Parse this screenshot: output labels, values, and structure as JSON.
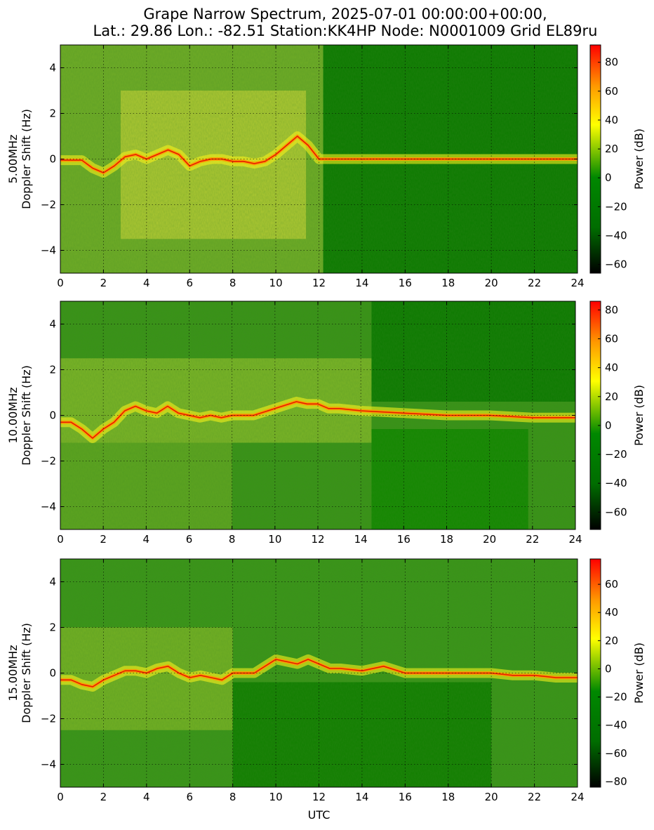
{
  "title_line1": "Grape Narrow Spectrum, 2025-07-01 00:00:00+00:00,",
  "title_line2": "Lat.: 29.86 Lon.: -82.51 Station:KK4HP Node: N0001009 Grid EL89ru",
  "colorscale": [
    "#000000",
    "#006d00",
    "#008800",
    "#ffff00",
    "#ff9900",
    "#ff0000"
  ],
  "chart_data": [
    {
      "type": "heatmap",
      "panel_label": "5.00MHz",
      "ylabel": "Doppler Shift (Hz)",
      "xlabel": "",
      "xlim": [
        0,
        24
      ],
      "ylim": [
        -5,
        5
      ],
      "xticks": [
        0,
        2,
        4,
        6,
        8,
        10,
        12,
        14,
        16,
        18,
        20,
        22,
        24
      ],
      "yticks": [
        -4,
        -2,
        0,
        2,
        4
      ],
      "grid": true,
      "colorbar": {
        "label": "Power (dB)",
        "range": [
          -66,
          92
        ],
        "ticks": [
          -60,
          -40,
          -20,
          0,
          20,
          40,
          60,
          80
        ]
      },
      "doppler_trace": [
        {
          "utc": 0,
          "hz": -0.05
        },
        {
          "utc": 1,
          "hz": -0.05
        },
        {
          "utc": 1.5,
          "hz": -0.4
        },
        {
          "utc": 2,
          "hz": -0.6
        },
        {
          "utc": 2.5,
          "hz": -0.3
        },
        {
          "utc": 3,
          "hz": 0.1
        },
        {
          "utc": 3.5,
          "hz": 0.2
        },
        {
          "utc": 4,
          "hz": 0.0
        },
        {
          "utc": 4.5,
          "hz": 0.2
        },
        {
          "utc": 5,
          "hz": 0.4
        },
        {
          "utc": 5.5,
          "hz": 0.2
        },
        {
          "utc": 6,
          "hz": -0.3
        },
        {
          "utc": 6.5,
          "hz": -0.1
        },
        {
          "utc": 7,
          "hz": 0.0
        },
        {
          "utc": 7.5,
          "hz": 0.0
        },
        {
          "utc": 8,
          "hz": -0.1
        },
        {
          "utc": 8.5,
          "hz": -0.1
        },
        {
          "utc": 9,
          "hz": -0.2
        },
        {
          "utc": 9.5,
          "hz": -0.1
        },
        {
          "utc": 10,
          "hz": 0.2
        },
        {
          "utc": 10.5,
          "hz": 0.6
        },
        {
          "utc": 11,
          "hz": 1.0
        },
        {
          "utc": 11.5,
          "hz": 0.6
        },
        {
          "utc": 12,
          "hz": 0.0
        },
        {
          "utc": 24,
          "hz": 0.0
        }
      ],
      "broad_signal_end_utc": 12.2
    },
    {
      "type": "heatmap",
      "panel_label": "10.00MHz",
      "ylabel": "Doppler Shift (Hz)",
      "xlabel": "",
      "xlim": [
        0,
        24
      ],
      "ylim": [
        -5,
        5
      ],
      "xticks": [
        0,
        2,
        4,
        6,
        8,
        10,
        12,
        14,
        16,
        18,
        20,
        22,
        24
      ],
      "yticks": [
        -4,
        -2,
        0,
        2,
        4
      ],
      "grid": true,
      "colorbar": {
        "label": "Power (dB)",
        "range": [
          -72,
          86
        ],
        "ticks": [
          -60,
          -40,
          -20,
          0,
          20,
          40,
          60,
          80
        ]
      },
      "doppler_trace": [
        {
          "utc": 0,
          "hz": -0.3
        },
        {
          "utc": 0.5,
          "hz": -0.3
        },
        {
          "utc": 1,
          "hz": -0.6
        },
        {
          "utc": 1.5,
          "hz": -1.0
        },
        {
          "utc": 2,
          "hz": -0.6
        },
        {
          "utc": 2.5,
          "hz": -0.3
        },
        {
          "utc": 3,
          "hz": 0.2
        },
        {
          "utc": 3.5,
          "hz": 0.4
        },
        {
          "utc": 4,
          "hz": 0.2
        },
        {
          "utc": 4.5,
          "hz": 0.1
        },
        {
          "utc": 5,
          "hz": 0.4
        },
        {
          "utc": 5.5,
          "hz": 0.1
        },
        {
          "utc": 6,
          "hz": 0.0
        },
        {
          "utc": 6.5,
          "hz": -0.1
        },
        {
          "utc": 7,
          "hz": 0.0
        },
        {
          "utc": 7.5,
          "hz": -0.1
        },
        {
          "utc": 8,
          "hz": 0.0
        },
        {
          "utc": 9,
          "hz": 0.0
        },
        {
          "utc": 10,
          "hz": 0.3
        },
        {
          "utc": 11,
          "hz": 0.6
        },
        {
          "utc": 11.5,
          "hz": 0.5
        },
        {
          "utc": 12,
          "hz": 0.5
        },
        {
          "utc": 12.5,
          "hz": 0.3
        },
        {
          "utc": 13,
          "hz": 0.3
        },
        {
          "utc": 14,
          "hz": 0.2
        },
        {
          "utc": 16,
          "hz": 0.1
        },
        {
          "utc": 18,
          "hz": 0.0
        },
        {
          "utc": 20,
          "hz": 0.0
        },
        {
          "utc": 22,
          "hz": -0.1
        },
        {
          "utc": 24,
          "hz": -0.1
        }
      ],
      "broad_signal_end_utc": 24
    },
    {
      "type": "heatmap",
      "panel_label": "15.00MHz",
      "ylabel": "Doppler Shift (Hz)",
      "xlabel": "UTC",
      "xlim": [
        0,
        24
      ],
      "ylim": [
        -5,
        5
      ],
      "xticks": [
        0,
        2,
        4,
        6,
        8,
        10,
        12,
        14,
        16,
        18,
        20,
        22,
        24
      ],
      "yticks": [
        -4,
        -2,
        0,
        2,
        4
      ],
      "grid": true,
      "colorbar": {
        "label": "Power (dB)",
        "range": [
          -84,
          78
        ],
        "ticks": [
          -80,
          -60,
          -40,
          -20,
          0,
          20,
          40,
          60
        ]
      },
      "doppler_trace": [
        {
          "utc": 0,
          "hz": -0.3
        },
        {
          "utc": 0.5,
          "hz": -0.3
        },
        {
          "utc": 1,
          "hz": -0.5
        },
        {
          "utc": 1.5,
          "hz": -0.6
        },
        {
          "utc": 2,
          "hz": -0.3
        },
        {
          "utc": 2.5,
          "hz": -0.1
        },
        {
          "utc": 3,
          "hz": 0.1
        },
        {
          "utc": 3.5,
          "hz": 0.1
        },
        {
          "utc": 4,
          "hz": 0.0
        },
        {
          "utc": 4.5,
          "hz": 0.2
        },
        {
          "utc": 5,
          "hz": 0.3
        },
        {
          "utc": 5.5,
          "hz": 0.0
        },
        {
          "utc": 6,
          "hz": -0.2
        },
        {
          "utc": 6.5,
          "hz": -0.1
        },
        {
          "utc": 7,
          "hz": -0.2
        },
        {
          "utc": 7.5,
          "hz": -0.3
        },
        {
          "utc": 8,
          "hz": 0.0
        },
        {
          "utc": 9,
          "hz": 0.0
        },
        {
          "utc": 10,
          "hz": 0.6
        },
        {
          "utc": 11,
          "hz": 0.4
        },
        {
          "utc": 11.5,
          "hz": 0.6
        },
        {
          "utc": 12,
          "hz": 0.4
        },
        {
          "utc": 12.5,
          "hz": 0.2
        },
        {
          "utc": 13,
          "hz": 0.2
        },
        {
          "utc": 14,
          "hz": 0.1
        },
        {
          "utc": 15,
          "hz": 0.3
        },
        {
          "utc": 16,
          "hz": 0.0
        },
        {
          "utc": 18,
          "hz": 0.0
        },
        {
          "utc": 20,
          "hz": 0.0
        },
        {
          "utc": 21,
          "hz": -0.1
        },
        {
          "utc": 22,
          "hz": -0.1
        },
        {
          "utc": 23,
          "hz": -0.2
        },
        {
          "utc": 24,
          "hz": -0.2
        }
      ],
      "broad_signal_end_utc": 24
    }
  ]
}
